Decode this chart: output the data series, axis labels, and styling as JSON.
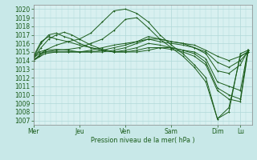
{
  "bg_color": "#c8e8e8",
  "plot_bg_color": "#d8f0f0",
  "grid_color": "#b0d8d8",
  "line_color": "#1a5c1a",
  "marker_color": "#1a5c1a",
  "xlabel": "Pression niveau de la mer( hPa )",
  "ylim": [
    1006.5,
    1020.5
  ],
  "ytick_min": 1007,
  "ytick_max": 1020,
  "xtick_labels": [
    "Mer",
    "Jeu",
    "Ven",
    "Sam",
    "Dim",
    "Lu"
  ],
  "xtick_positions": [
    0,
    48,
    96,
    144,
    192,
    216
  ],
  "total_hours": 228,
  "lines": [
    [
      0,
      1014.0,
      6,
      1014.5,
      12,
      1015.0,
      24,
      1015.2,
      36,
      1015.3,
      48,
      1015.5,
      60,
      1016.0,
      72,
      1016.5,
      84,
      1017.5,
      96,
      1018.8,
      108,
      1019.0,
      120,
      1017.8,
      132,
      1016.5,
      144,
      1015.5,
      156,
      1014.5,
      168,
      1013.2,
      180,
      1011.5,
      192,
      1007.2,
      204,
      1008.5,
      216,
      1014.5,
      224,
      1015.0
    ],
    [
      0,
      1014.0,
      12,
      1015.2,
      24,
      1015.8,
      36,
      1016.2,
      48,
      1016.5,
      60,
      1017.2,
      72,
      1018.5,
      84,
      1019.8,
      96,
      1020.0,
      108,
      1019.5,
      120,
      1018.5,
      132,
      1017.0,
      144,
      1015.8,
      156,
      1014.8,
      168,
      1013.5,
      180,
      1012.0,
      192,
      1007.2,
      204,
      1008.0,
      216,
      1014.8,
      224,
      1015.2
    ],
    [
      0,
      1014.2,
      8,
      1015.5,
      16,
      1016.5,
      24,
      1017.0,
      32,
      1017.3,
      40,
      1017.0,
      48,
      1016.5,
      60,
      1015.8,
      72,
      1015.3,
      84,
      1015.0,
      96,
      1015.0,
      108,
      1015.2,
      120,
      1015.5,
      132,
      1015.5,
      144,
      1015.3,
      156,
      1015.0,
      168,
      1014.5,
      180,
      1013.5,
      192,
      1010.5,
      204,
      1009.5,
      216,
      1009.2,
      224,
      1015.0
    ],
    [
      0,
      1014.3,
      8,
      1016.0,
      16,
      1017.0,
      24,
      1017.2,
      32,
      1016.8,
      40,
      1016.5,
      48,
      1016.0,
      60,
      1015.5,
      72,
      1015.2,
      84,
      1015.0,
      96,
      1015.0,
      108,
      1015.0,
      120,
      1015.2,
      132,
      1015.5,
      144,
      1015.5,
      156,
      1015.2,
      168,
      1014.8,
      180,
      1013.8,
      192,
      1010.8,
      204,
      1010.0,
      216,
      1009.5,
      224,
      1015.2
    ],
    [
      0,
      1014.5,
      8,
      1016.2,
      16,
      1016.8,
      24,
      1016.5,
      36,
      1016.2,
      48,
      1015.8,
      60,
      1015.5,
      72,
      1015.2,
      84,
      1015.0,
      96,
      1015.2,
      108,
      1015.5,
      120,
      1016.0,
      132,
      1015.8,
      144,
      1015.5,
      156,
      1015.2,
      168,
      1015.0,
      180,
      1014.2,
      192,
      1011.5,
      204,
      1011.0,
      216,
      1010.5,
      224,
      1015.3
    ],
    [
      0,
      1014.5,
      6,
      1015.0,
      12,
      1015.2,
      24,
      1015.3,
      36,
      1015.2,
      48,
      1015.0,
      60,
      1015.0,
      72,
      1015.0,
      84,
      1015.2,
      96,
      1015.5,
      108,
      1016.0,
      120,
      1016.5,
      132,
      1016.2,
      144,
      1016.0,
      156,
      1015.8,
      168,
      1015.5,
      180,
      1014.8,
      192,
      1012.8,
      204,
      1012.5,
      216,
      1013.5,
      224,
      1015.2
    ],
    [
      0,
      1014.3,
      6,
      1014.8,
      12,
      1015.0,
      24,
      1015.0,
      36,
      1015.0,
      48,
      1015.0,
      60,
      1015.0,
      72,
      1015.2,
      84,
      1015.5,
      96,
      1015.8,
      108,
      1016.2,
      120,
      1016.8,
      132,
      1016.5,
      144,
      1016.2,
      156,
      1016.0,
      168,
      1015.5,
      180,
      1015.0,
      192,
      1013.8,
      204,
      1013.2,
      216,
      1014.0,
      224,
      1015.0
    ],
    [
      0,
      1014.0,
      12,
      1014.8,
      24,
      1015.0,
      36,
      1015.0,
      48,
      1015.0,
      60,
      1015.2,
      72,
      1015.5,
      84,
      1015.8,
      96,
      1016.0,
      108,
      1016.2,
      120,
      1016.5,
      132,
      1016.5,
      144,
      1016.2,
      156,
      1016.0,
      168,
      1015.8,
      180,
      1015.2,
      192,
      1014.5,
      204,
      1014.0,
      216,
      1014.5,
      224,
      1015.0
    ]
  ]
}
